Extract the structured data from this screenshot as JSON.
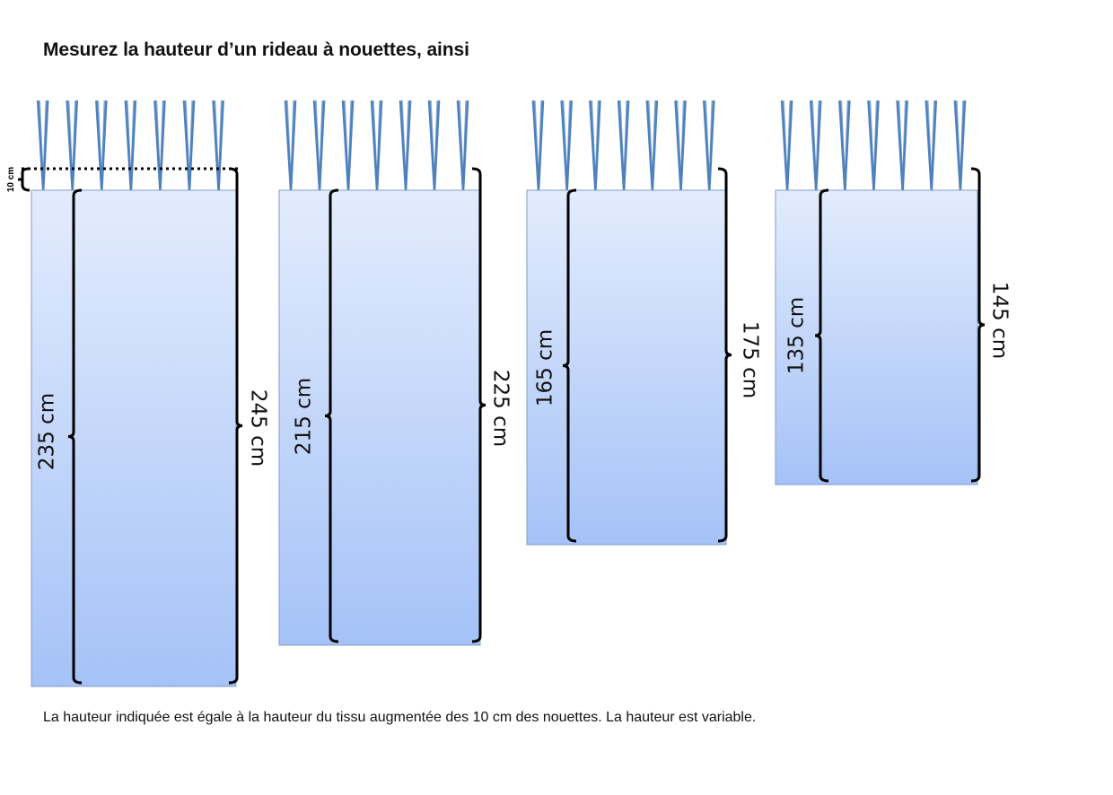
{
  "title": "Mesurez la hauteur d’un rideau à nouettes, ainsi",
  "caption": "La hauteur indiquée est égale à la hauteur du tissu augmentée des 10 cm des nouettes. La hauteur est variable.",
  "tab_label": "10 cm",
  "curtains": [
    {
      "fabric_label": "235 cm",
      "total_label": "245 cm"
    },
    {
      "fabric_label": "215 cm",
      "total_label": "225 cm"
    },
    {
      "fabric_label": "165 cm",
      "total_label": "175 cm"
    },
    {
      "fabric_label": "135 cm",
      "total_label": "145 cm"
    }
  ],
  "colors": {
    "fabric_top": "#e3ecfd",
    "fabric_bottom": "#a5c2f7",
    "fabric_border": "#7f9ccb",
    "tabs": "#4f81bd",
    "bracket": "#000000"
  }
}
